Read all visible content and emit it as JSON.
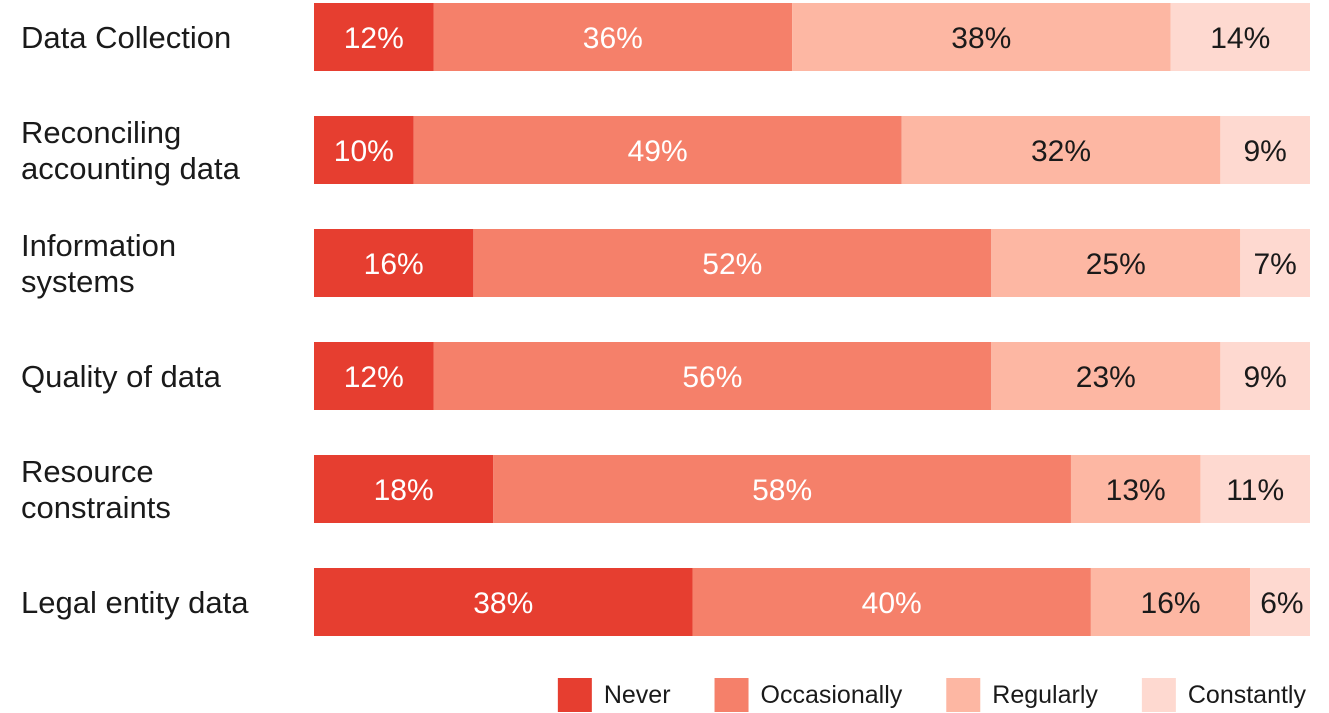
{
  "chart_data": {
    "type": "bar",
    "orientation": "horizontal",
    "stacked": true,
    "categories": [
      [
        "Data Collection"
      ],
      [
        "Reconciling",
        "accounting data"
      ],
      [
        "Information",
        "systems"
      ],
      [
        "Quality of data"
      ],
      [
        "Resource",
        "constraints"
      ],
      [
        "Legal entity data"
      ]
    ],
    "series": [
      {
        "name": "Never",
        "color": "#e63e30",
        "label_color": "#ffffff",
        "values": [
          12,
          10,
          16,
          12,
          18,
          38
        ]
      },
      {
        "name": "Occasionally",
        "color": "#f5806a",
        "label_color": "#ffffff",
        "values": [
          36,
          49,
          52,
          56,
          58,
          40
        ]
      },
      {
        "name": "Regularly",
        "color": "#fdb7a3",
        "label_color": "#1a1a1a",
        "values": [
          38,
          32,
          25,
          23,
          13,
          16
        ]
      },
      {
        "name": "Constantly",
        "color": "#fed9d0",
        "label_color": "#1a1a1a",
        "values": [
          14,
          9,
          7,
          9,
          11,
          6
        ]
      }
    ],
    "value_suffix": "%",
    "xlim": [
      0,
      100
    ],
    "grid": false,
    "legend_position": "bottom-right"
  }
}
